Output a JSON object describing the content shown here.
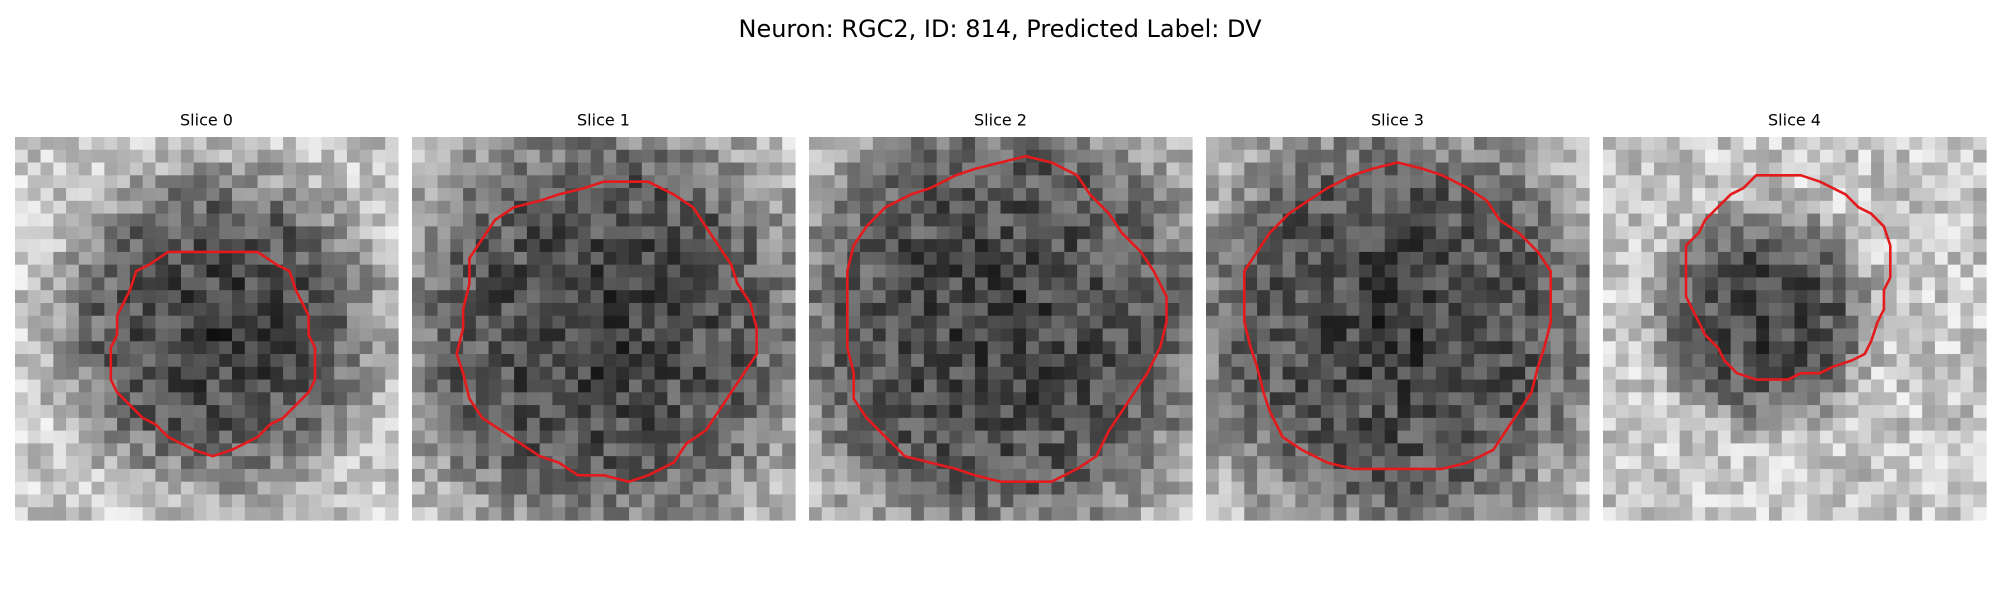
{
  "title": "Neuron: RGC2, ID: 814, Predicted Label: DV",
  "panels": [
    {
      "title": "Slice 0"
    },
    {
      "title": "Slice 1"
    },
    {
      "title": "Slice 2"
    },
    {
      "title": "Slice 3"
    },
    {
      "title": "Slice 4"
    }
  ]
}
